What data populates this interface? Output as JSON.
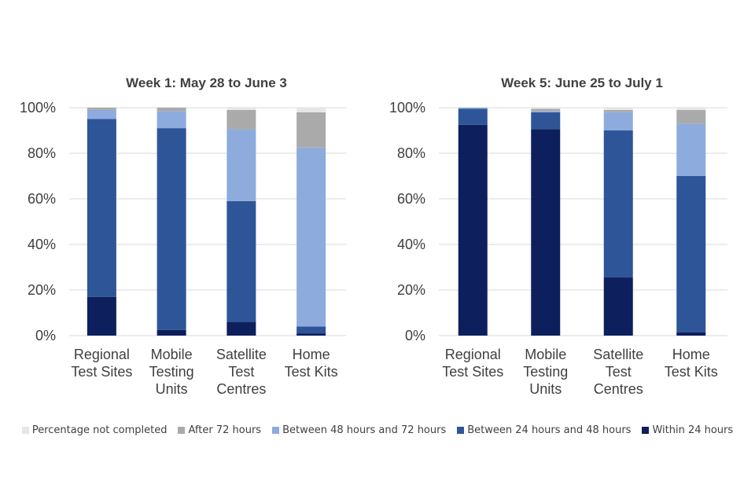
{
  "chart_data": [
    {
      "type": "bar",
      "stacked": true,
      "title": "Week 1: May 28 to June 3",
      "categories": [
        [
          "Regional",
          "Test Sites"
        ],
        [
          "Mobile",
          "Testing",
          "Units"
        ],
        [
          "Satellite",
          "Test",
          "Centres"
        ],
        [
          "Home",
          "Test Kits"
        ]
      ],
      "ylim": [
        0,
        100
      ],
      "yticks": [
        "0%",
        "20%",
        "40%",
        "60%",
        "80%",
        "100%"
      ],
      "grid": true,
      "series": [
        {
          "name": "Within 24 hours",
          "values": [
            17,
            2.5,
            6,
            1
          ]
        },
        {
          "name": "Between 24 hours and 48 hours",
          "values": [
            78,
            88.5,
            53,
            3
          ]
        },
        {
          "name": "Between 48 hours and 72 hours",
          "values": [
            4,
            7.5,
            31.5,
            78.5
          ]
        },
        {
          "name": "After 72 hours",
          "values": [
            1,
            1.5,
            8.5,
            15.5
          ]
        },
        {
          "name": "Percentage not completed",
          "values": [
            0,
            0,
            1,
            2
          ]
        }
      ]
    },
    {
      "type": "bar",
      "stacked": true,
      "title": "Week 5: June 25 to July 1",
      "categories": [
        [
          "Regional",
          "Test Sites"
        ],
        [
          "Mobile",
          "Testing",
          "Units"
        ],
        [
          "Satellite",
          "Test",
          "Centres"
        ],
        [
          "Home",
          "Test Kits"
        ]
      ],
      "ylim": [
        0,
        100
      ],
      "yticks": [
        "0%",
        "20%",
        "40%",
        "60%",
        "80%",
        "100%"
      ],
      "grid": true,
      "series": [
        {
          "name": "Within 24 hours",
          "values": [
            92.5,
            90.5,
            25.5,
            1.5
          ]
        },
        {
          "name": "Between 24 hours and 48 hours",
          "values": [
            7,
            7.5,
            64.5,
            68.5
          ]
        },
        {
          "name": "Between 48 hours and 72 hours",
          "values": [
            0.5,
            0.5,
            8,
            23
          ]
        },
        {
          "name": "After 72 hours",
          "values": [
            0,
            1,
            1,
            6
          ]
        },
        {
          "name": "Percentage not completed",
          "values": [
            0,
            0.5,
            1,
            1
          ]
        }
      ]
    }
  ],
  "colors": {
    "Within 24 hours": "#0d1f5c",
    "Between 24 hours and 48 hours": "#2e5597",
    "Between 48 hours and 72 hours": "#8eabdd",
    "After 72 hours": "#aaaaaa",
    "Percentage not completed": "#e6e6e6",
    "grid": "#d9d9d9",
    "axis_text": "#404040",
    "title_text": "#404040"
  },
  "legend": {
    "position": "bottom",
    "items": [
      "Percentage not completed",
      "After 72 hours",
      "Between 48 hours and 72 hours",
      "Between 24 hours and 48 hours",
      "Within 24 hours"
    ]
  }
}
